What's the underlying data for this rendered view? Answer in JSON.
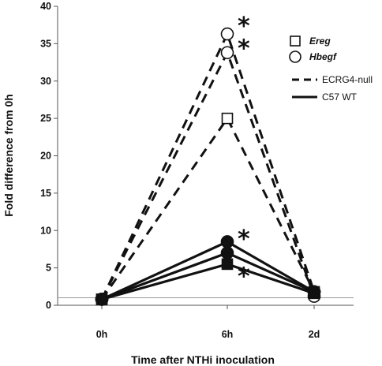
{
  "chart_data": {
    "type": "line",
    "xlabel": "Time after NTHi inoculation",
    "ylabel": "Fold difference from 0h",
    "categories": [
      "0h",
      "6h",
      "2d"
    ],
    "ylim": [
      0,
      40
    ],
    "yticks": [
      0,
      5,
      10,
      15,
      20,
      25,
      30,
      35,
      40
    ],
    "reference_line": 1,
    "series": [
      {
        "name": "Hbegf",
        "group": "ECRG4-null",
        "marker": "circle",
        "filled": false,
        "dash": true,
        "values": [
          0.8,
          33.8,
          1.2
        ]
      },
      {
        "name": "Hbegf",
        "group": "ECRG4-null",
        "marker": "circle",
        "filled": false,
        "dash": true,
        "values": [
          0.8,
          36.3,
          1.8
        ]
      },
      {
        "name": "Ereg",
        "group": "ECRG4-null",
        "marker": "square",
        "filled": false,
        "dash": true,
        "values": [
          0.8,
          25.0,
          1.8
        ]
      },
      {
        "name": "Hbegf",
        "group": "C57 WT",
        "marker": "circle",
        "filled": true,
        "dash": false,
        "values": [
          0.8,
          8.5,
          1.8
        ]
      },
      {
        "name": "Hbegf",
        "group": "C57 WT",
        "marker": "circle",
        "filled": true,
        "dash": false,
        "values": [
          0.8,
          7.0,
          1.8
        ]
      },
      {
        "name": "Ereg",
        "group": "C57 WT",
        "marker": "square",
        "filled": true,
        "dash": false,
        "values": [
          0.8,
          5.5,
          1.6
        ]
      }
    ],
    "annotations": [
      {
        "text": "*",
        "x": "6h",
        "y": 38.0
      },
      {
        "text": "*",
        "x": "6h",
        "y": 35.0
      },
      {
        "text": "*",
        "x": "6h",
        "y": 9.5
      },
      {
        "text": "*",
        "x": "6h",
        "y": 4.5
      }
    ],
    "legend": {
      "placement": "top-right",
      "markers": [
        {
          "label": "Ereg",
          "marker": "square"
        },
        {
          "label": "Hbegf",
          "marker": "circle"
        }
      ],
      "lines": [
        {
          "label": "ECRG4-null",
          "dash": true
        },
        {
          "label": "C57 WT",
          "dash": false
        }
      ]
    }
  }
}
